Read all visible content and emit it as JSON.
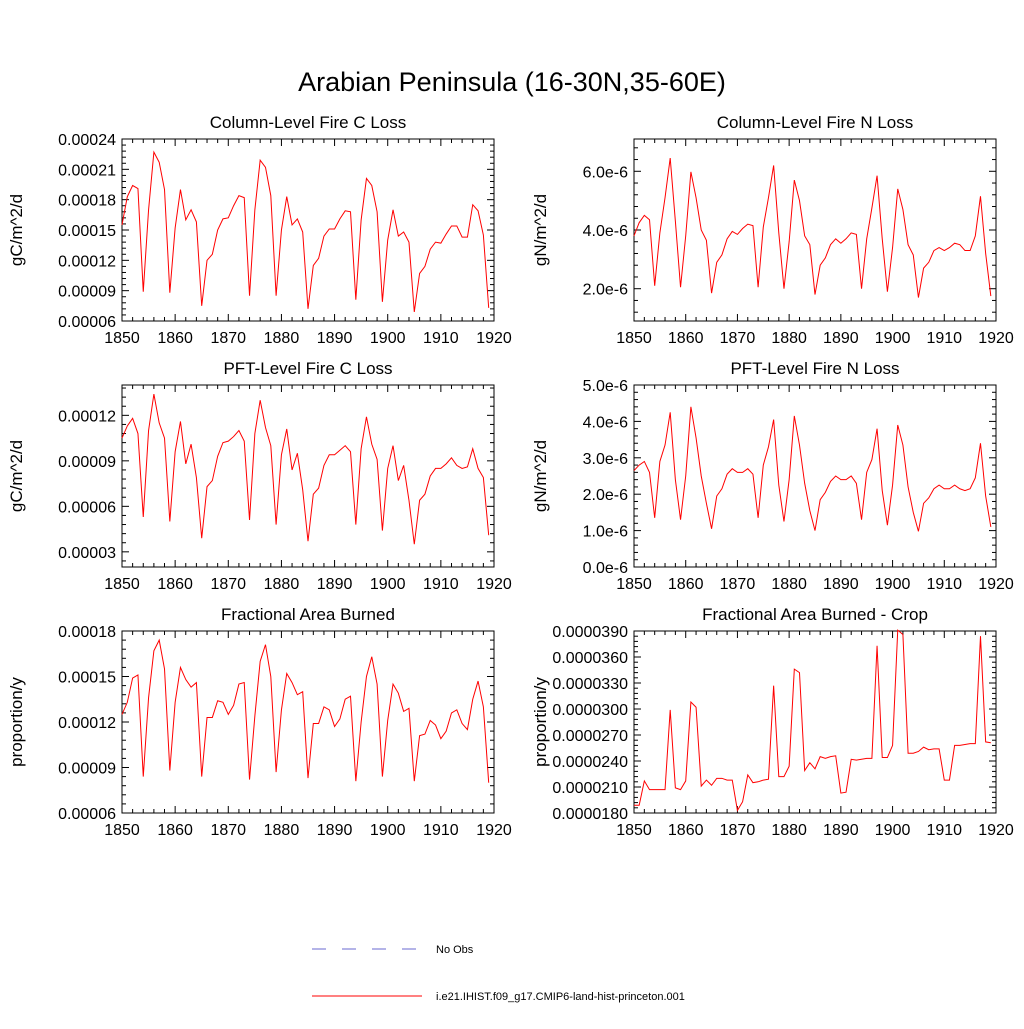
{
  "main_title": "Arabian Peninsula (16-30N,35-60E)",
  "line_color": "#ff0000",
  "obs_color": "#6a6ad0",
  "legend": {
    "obs_label": "No Obs",
    "model_label": "i.e21.IHIST.f09_g17.CMIP6-land-hist-princeton.001"
  },
  "chart_data": [
    {
      "type": "line",
      "title": "Column-Level Fire C Loss",
      "ylabel": "gC/m^2/d",
      "xlim": [
        1850,
        1920
      ],
      "ylim": [
        6e-05,
        0.00024
      ],
      "xticks": [
        "1850",
        "1860",
        "1870",
        "1880",
        "1890",
        "1900",
        "1910",
        "1920"
      ],
      "yticks": [
        "0.00006",
        "0.00009",
        "0.00012",
        "0.00015",
        "0.00018",
        "0.00021",
        "0.00024"
      ],
      "x": [
        1850,
        1851,
        1852,
        1853,
        1854,
        1855,
        1856,
        1857,
        1858,
        1859,
        1860,
        1861,
        1862,
        1863,
        1864,
        1865,
        1866,
        1867,
        1868,
        1869,
        1870,
        1871,
        1872,
        1873,
        1874,
        1875,
        1876,
        1877,
        1878,
        1879,
        1880,
        1881,
        1882,
        1883,
        1884,
        1885,
        1886,
        1887,
        1888,
        1889,
        1890,
        1891,
        1892,
        1893,
        1894,
        1895,
        1896,
        1897,
        1898,
        1899,
        1900,
        1901,
        1902,
        1903,
        1904,
        1905,
        1906,
        1907,
        1908,
        1909,
        1910,
        1911,
        1912,
        1913,
        1914,
        1915,
        1916,
        1917,
        1918,
        1919
      ],
      "y": [
        0.000155,
        0.000183,
        0.000194,
        0.000191,
        8.9e-05,
        0.00017,
        0.000227,
        0.000217,
        0.00019,
        8.8e-05,
        0.000152,
        0.00019,
        0.00016,
        0.00017,
        0.000158,
        7.5e-05,
        0.00012,
        0.000126,
        0.00015,
        0.000161,
        0.000162,
        0.000174,
        0.000184,
        0.000182,
        8.5e-05,
        0.00017,
        0.000219,
        0.000212,
        0.000184,
        8.5e-05,
        0.00015,
        0.000183,
        0.000155,
        0.000161,
        0.000148,
        7.2e-05,
        0.000115,
        0.000122,
        0.000144,
        0.000151,
        0.000151,
        0.000161,
        0.000169,
        0.000168,
        8.1e-05,
        0.00016,
        0.000201,
        0.000194,
        0.000168,
        7.9e-05,
        0.00014,
        0.00017,
        0.000144,
        0.000148,
        0.000138,
        6.9e-05,
        0.000107,
        0.000114,
        0.000131,
        0.000138,
        0.000137,
        0.000146,
        0.000154,
        0.000154,
        0.000143,
        0.000143,
        0.000175,
        0.000169,
        0.000145,
        7.3e-05
      ],
      "series": [
        {
          "name": "i.e21.IHIST.f09_g17.CMIP6-land-hist-princeton.001"
        }
      ]
    },
    {
      "type": "line",
      "title": "Column-Level Fire N Loss",
      "ylabel": "gN/m^2/d",
      "xlim": [
        1850,
        1920
      ],
      "ylim": [
        9e-07,
        7.1e-06
      ],
      "xticks": [
        "1850",
        "1860",
        "1870",
        "1880",
        "1890",
        "1900",
        "1910",
        "1920"
      ],
      "yticks": [
        "2.0e-6",
        "4.0e-6",
        "6.0e-6"
      ],
      "ytick_values": [
        2e-06,
        4e-06,
        6e-06
      ],
      "x": [
        1850,
        1851,
        1852,
        1853,
        1854,
        1855,
        1856,
        1857,
        1858,
        1859,
        1860,
        1861,
        1862,
        1863,
        1864,
        1865,
        1866,
        1867,
        1868,
        1869,
        1870,
        1871,
        1872,
        1873,
        1874,
        1875,
        1876,
        1877,
        1878,
        1879,
        1880,
        1881,
        1882,
        1883,
        1884,
        1885,
        1886,
        1887,
        1888,
        1889,
        1890,
        1891,
        1892,
        1893,
        1894,
        1895,
        1896,
        1897,
        1898,
        1899,
        1900,
        1901,
        1902,
        1903,
        1904,
        1905,
        1906,
        1907,
        1908,
        1909,
        1910,
        1911,
        1912,
        1913,
        1914,
        1915,
        1916,
        1917,
        1918,
        1919
      ],
      "y": [
        3.8e-06,
        4.25e-06,
        4.5e-06,
        4.35e-06,
        2.1e-06,
        3.9e-06,
        5.1e-06,
        6.45e-06,
        4.3e-06,
        2.05e-06,
        3.8e-06,
        5.98e-06,
        5.1e-06,
        4e-06,
        3.65e-06,
        1.85e-06,
        2.9e-06,
        3.15e-06,
        3.7e-06,
        3.95e-06,
        3.85e-06,
        4.05e-06,
        4.2e-06,
        4.15e-06,
        2.05e-06,
        4.1e-06,
        5.1e-06,
        6.2e-06,
        3.9e-06,
        2e-06,
        3.6e-06,
        5.7e-06,
        5e-06,
        3.8e-06,
        3.5e-06,
        1.8e-06,
        2.8e-06,
        3.05e-06,
        3.5e-06,
        3.7e-06,
        3.55e-06,
        3.7e-06,
        3.9e-06,
        3.85e-06,
        2e-06,
        3.7e-06,
        4.75e-06,
        5.85e-06,
        3.7e-06,
        1.9e-06,
        3.4e-06,
        5.4e-06,
        4.7e-06,
        3.5e-06,
        3.15e-06,
        1.7e-06,
        2.7e-06,
        2.9e-06,
        3.3e-06,
        3.4e-06,
        3.3e-06,
        3.4e-06,
        3.55e-06,
        3.5e-06,
        3.3e-06,
        3.3e-06,
        3.8e-06,
        5.15e-06,
        3.2e-06,
        1.75e-06
      ],
      "series": [
        {
          "name": "i.e21.IHIST.f09_g17.CMIP6-land-hist-princeton.001"
        }
      ]
    },
    {
      "type": "line",
      "title": "PFT-Level Fire C Loss",
      "ylabel": "gC/m^2/d",
      "xlim": [
        1850,
        1920
      ],
      "ylim": [
        2e-05,
        0.00014
      ],
      "xticks": [
        "1850",
        "1860",
        "1870",
        "1880",
        "1890",
        "1900",
        "1910",
        "1920"
      ],
      "yticks": [
        "0.00003",
        "0.00006",
        "0.00009",
        "0.00012"
      ],
      "ytick_values": [
        3e-05,
        6e-05,
        9e-05,
        0.00012
      ],
      "x": [
        1850,
        1851,
        1852,
        1853,
        1854,
        1855,
        1856,
        1857,
        1858,
        1859,
        1860,
        1861,
        1862,
        1863,
        1864,
        1865,
        1866,
        1867,
        1868,
        1869,
        1870,
        1871,
        1872,
        1873,
        1874,
        1875,
        1876,
        1877,
        1878,
        1879,
        1880,
        1881,
        1882,
        1883,
        1884,
        1885,
        1886,
        1887,
        1888,
        1889,
        1890,
        1891,
        1892,
        1893,
        1894,
        1895,
        1896,
        1897,
        1898,
        1899,
        1900,
        1901,
        1902,
        1903,
        1904,
        1905,
        1906,
        1907,
        1908,
        1909,
        1910,
        1911,
        1912,
        1913,
        1914,
        1915,
        1916,
        1917,
        1918,
        1919
      ],
      "y": [
        0.000105,
        0.000113,
        0.000118,
        0.000108,
        5.3e-05,
        0.00011,
        0.000134,
        0.000115,
        0.000105,
        5e-05,
        9.6e-05,
        0.000116,
        8.8e-05,
        0.000101,
        7.9e-05,
        3.9e-05,
        7.3e-05,
        7.7e-05,
        9.3e-05,
        0.000102,
        0.000103,
        0.000106,
        0.00011,
        0.000103,
        5.1e-05,
        0.000108,
        0.00013,
        0.000112,
        0.0001,
        4.8e-05,
        9.4e-05,
        0.000111,
        8.4e-05,
        9.5e-05,
        7.1e-05,
        3.7e-05,
        6.8e-05,
        7.2e-05,
        8.7e-05,
        9.4e-05,
        9.4e-05,
        9.7e-05,
        0.0001,
        9.6e-05,
        4.8e-05,
        9.8e-05,
        0.000119,
        0.000101,
        9.1e-05,
        4.4e-05,
        8.5e-05,
        0.0001,
        7.7e-05,
        8.7e-05,
        6.4e-05,
        3.5e-05,
        6.4e-05,
        6.8e-05,
        8e-05,
        8.5e-05,
        8.5e-05,
        8.8e-05,
        9.2e-05,
        8.7e-05,
        8.5e-05,
        8.6e-05,
        9.8e-05,
        8.5e-05,
        7.9e-05,
        4.1e-05
      ],
      "series": [
        {
          "name": "i.e21.IHIST.f09_g17.CMIP6-land-hist-princeton.001"
        }
      ]
    },
    {
      "type": "line",
      "title": "PFT-Level Fire N Loss",
      "ylabel": "gN/m^2/d",
      "xlim": [
        1850,
        1920
      ],
      "ylim": [
        0.0,
        5e-06
      ],
      "xticks": [
        "1850",
        "1860",
        "1870",
        "1880",
        "1890",
        "1900",
        "1910",
        "1920"
      ],
      "yticks": [
        "0.0e-6",
        "1.0e-6",
        "2.0e-6",
        "3.0e-6",
        "4.0e-6",
        "5.0e-6"
      ],
      "ytick_values": [
        0.0,
        1e-06,
        2e-06,
        3e-06,
        4e-06,
        5e-06
      ],
      "x": [
        1850,
        1851,
        1852,
        1853,
        1854,
        1855,
        1856,
        1857,
        1858,
        1859,
        1860,
        1861,
        1862,
        1863,
        1864,
        1865,
        1866,
        1867,
        1868,
        1869,
        1870,
        1871,
        1872,
        1873,
        1874,
        1875,
        1876,
        1877,
        1878,
        1879,
        1880,
        1881,
        1882,
        1883,
        1884,
        1885,
        1886,
        1887,
        1888,
        1889,
        1890,
        1891,
        1892,
        1893,
        1894,
        1895,
        1896,
        1897,
        1898,
        1899,
        1900,
        1901,
        1902,
        1903,
        1904,
        1905,
        1906,
        1907,
        1908,
        1909,
        1910,
        1911,
        1912,
        1913,
        1914,
        1915,
        1916,
        1917,
        1918,
        1919
      ],
      "y": [
        2.65e-06,
        2.8e-06,
        2.9e-06,
        2.6e-06,
        1.35e-06,
        2.9e-06,
        3.35e-06,
        4.25e-06,
        2.4e-06,
        1.3e-06,
        2.5e-06,
        4.4e-06,
        3.55e-06,
        2.5e-06,
        1.75e-06,
        1.05e-06,
        1.95e-06,
        2.15e-06,
        2.55e-06,
        2.7e-06,
        2.6e-06,
        2.6e-06,
        2.7e-06,
        2.55e-06,
        1.35e-06,
        2.8e-06,
        3.3e-06,
        4.05e-06,
        2.25e-06,
        1.25e-06,
        2.4e-06,
        4.15e-06,
        3.35e-06,
        2.3e-06,
        1.55e-06,
        1e-06,
        1.85e-06,
        2.05e-06,
        2.35e-06,
        2.5e-06,
        2.4e-06,
        2.4e-06,
        2.5e-06,
        2.3e-06,
        1.3e-06,
        2.6e-06,
        2.95e-06,
        3.8e-06,
        2.1e-06,
        1.15e-06,
        2.25e-06,
        3.9e-06,
        3.35e-06,
        2.2e-06,
        1.5e-06,
        9.8e-07,
        1.75e-06,
        1.9e-06,
        2.15e-06,
        2.25e-06,
        2.15e-06,
        2.15e-06,
        2.25e-06,
        2.15e-06,
        2.1e-06,
        2.15e-06,
        2.45e-06,
        3.4e-06,
        1.95e-06,
        1.1e-06
      ],
      "series": [
        {
          "name": "i.e21.IHIST.f09_g17.CMIP6-land-hist-princeton.001"
        }
      ]
    },
    {
      "type": "line",
      "title": "Fractional Area Burned",
      "ylabel": "proportion/y",
      "xlim": [
        1850,
        1920
      ],
      "ylim": [
        6e-05,
        0.00018
      ],
      "xticks": [
        "1850",
        "1860",
        "1870",
        "1880",
        "1890",
        "1900",
        "1910",
        "1920"
      ],
      "yticks": [
        "0.00006",
        "0.00009",
        "0.00012",
        "0.00015",
        "0.00018"
      ],
      "ytick_values": [
        6e-05,
        9e-05,
        0.00012,
        0.00015,
        0.00018
      ],
      "x": [
        1850,
        1851,
        1852,
        1853,
        1854,
        1855,
        1856,
        1857,
        1858,
        1859,
        1860,
        1861,
        1862,
        1863,
        1864,
        1865,
        1866,
        1867,
        1868,
        1869,
        1870,
        1871,
        1872,
        1873,
        1874,
        1875,
        1876,
        1877,
        1878,
        1879,
        1880,
        1881,
        1882,
        1883,
        1884,
        1885,
        1886,
        1887,
        1888,
        1889,
        1890,
        1891,
        1892,
        1893,
        1894,
        1895,
        1896,
        1897,
        1898,
        1899,
        1900,
        1901,
        1902,
        1903,
        1904,
        1905,
        1906,
        1907,
        1908,
        1909,
        1910,
        1911,
        1912,
        1913,
        1914,
        1915,
        1916,
        1917,
        1918,
        1919
      ],
      "y": [
        0.000125,
        0.000133,
        0.000149,
        0.000151,
        8.4e-05,
        0.000136,
        0.000167,
        0.000174,
        0.000155,
        8.8e-05,
        0.000133,
        0.000156,
        0.000148,
        0.000143,
        0.000146,
        8.4e-05,
        0.000123,
        0.000123,
        0.000134,
        0.000133,
        0.000125,
        0.000131,
        0.000145,
        0.000146,
        8.2e-05,
        0.000124,
        0.00016,
        0.000171,
        0.00015,
        8.7e-05,
        0.000128,
        0.000152,
        0.000146,
        0.000138,
        0.00014,
        8.3e-05,
        0.000119,
        0.000119,
        0.00013,
        0.000128,
        0.000117,
        0.000122,
        0.000135,
        0.000137,
        8.1e-05,
        0.00012,
        0.00015,
        0.000163,
        0.000145,
        8.4e-05,
        0.000121,
        0.000145,
        0.000139,
        0.000127,
        0.000129,
        8.1e-05,
        0.000111,
        0.000112,
        0.000121,
        0.000118,
        0.000109,
        0.000114,
        0.000126,
        0.000128,
        0.000119,
        0.000115,
        0.000135,
        0.000147,
        0.00013,
        8e-05
      ],
      "series": [
        {
          "name": "i.e21.IHIST.f09_g17.CMIP6-land-hist-princeton.001"
        }
      ]
    },
    {
      "type": "line",
      "title": "Fractional Area Burned - Crop",
      "ylabel": "proportion/y",
      "xlim": [
        1850,
        1920
      ],
      "ylim": [
        1.8e-05,
        3.9e-05
      ],
      "xticks": [
        "1850",
        "1860",
        "1870",
        "1880",
        "1890",
        "1900",
        "1910",
        "1920"
      ],
      "yticks": [
        "0.0000180",
        "0.0000210",
        "0.0000240",
        "0.0000270",
        "0.0000300",
        "0.0000330",
        "0.0000360",
        "0.0000390"
      ],
      "ytick_values": [
        1.8e-05,
        2.1e-05,
        2.4e-05,
        2.7e-05,
        3e-05,
        3.3e-05,
        3.6e-05,
        3.9e-05
      ],
      "x": [
        1850,
        1851,
        1852,
        1853,
        1854,
        1855,
        1856,
        1857,
        1858,
        1859,
        1860,
        1861,
        1862,
        1863,
        1864,
        1865,
        1866,
        1867,
        1868,
        1869,
        1870,
        1871,
        1872,
        1873,
        1874,
        1875,
        1876,
        1877,
        1878,
        1879,
        1880,
        1881,
        1882,
        1883,
        1884,
        1885,
        1886,
        1887,
        1888,
        1889,
        1890,
        1891,
        1892,
        1893,
        1894,
        1895,
        1896,
        1897,
        1898,
        1899,
        1900,
        1901,
        1902,
        1903,
        1904,
        1905,
        1906,
        1907,
        1908,
        1909,
        1910,
        1911,
        1912,
        1913,
        1914,
        1915,
        1916,
        1917,
        1918,
        1919
      ],
      "y": [
        1.89e-05,
        1.89e-05,
        2.17e-05,
        2.07e-05,
        2.07e-05,
        2.07e-05,
        2.07e-05,
        2.99e-05,
        2.09e-05,
        2.07e-05,
        2.17e-05,
        3.08e-05,
        3.02e-05,
        2.11e-05,
        2.18e-05,
        2.12e-05,
        2.2e-05,
        2.2e-05,
        2.18e-05,
        2.18e-05,
        1.83e-05,
        1.93e-05,
        2.24e-05,
        2.15e-05,
        2.16e-05,
        2.18e-05,
        2.19e-05,
        3.27e-05,
        2.22e-05,
        2.22e-05,
        2.34e-05,
        3.46e-05,
        3.42e-05,
        2.29e-05,
        2.38e-05,
        2.31e-05,
        2.45e-05,
        2.43e-05,
        2.45e-05,
        2.46e-05,
        2.03e-05,
        2.04e-05,
        2.42e-05,
        2.41e-05,
        2.42e-05,
        2.43e-05,
        2.43e-05,
        3.73e-05,
        2.44e-05,
        2.44e-05,
        2.58e-05,
        3.91e-05,
        3.86e-05,
        2.49e-05,
        2.49e-05,
        2.51e-05,
        2.56e-05,
        2.53e-05,
        2.54e-05,
        2.54e-05,
        2.18e-05,
        2.18e-05,
        2.58e-05,
        2.58e-05,
        2.59e-05,
        2.6e-05,
        2.6e-05,
        3.84e-05,
        2.62e-05,
        2.61e-05
      ],
      "series": [
        {
          "name": "i.e21.IHIST.f09_g17.CMIP6-land-hist-princeton.001"
        }
      ]
    }
  ]
}
